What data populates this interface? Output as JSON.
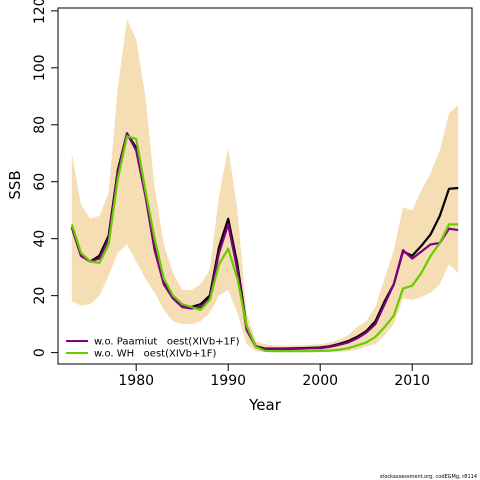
{
  "chart_data": {
    "type": "line",
    "xlabel": "Year",
    "ylabel": "SSB",
    "xlim": [
      1971.5,
      2016.5
    ],
    "ylim": [
      -4,
      121
    ],
    "x_ticks": [
      {
        "value": 1980,
        "label": "1980"
      },
      {
        "value": 1990,
        "label": "1990"
      },
      {
        "value": 2000,
        "label": "2000"
      },
      {
        "value": 2010,
        "label": "2010"
      }
    ],
    "y_ticks": [
      {
        "value": 0,
        "label": "0"
      },
      {
        "value": 20,
        "label": "20"
      },
      {
        "value": 40,
        "label": "40"
      },
      {
        "value": 60,
        "label": "60"
      },
      {
        "value": 80,
        "label": "80"
      },
      {
        "value": 100,
        "label": "100"
      },
      {
        "value": 120,
        "label": "120"
      }
    ],
    "legend_position": "bottom-left",
    "x": [
      1973,
      1974,
      1975,
      1976,
      1977,
      1978,
      1979,
      1980,
      1981,
      1982,
      1983,
      1984,
      1985,
      1986,
      1987,
      1988,
      1989,
      1990,
      1991,
      1992,
      1993,
      1994,
      1995,
      1996,
      1997,
      1998,
      1999,
      2000,
      2001,
      2002,
      2003,
      2004,
      2005,
      2006,
      2007,
      2008,
      2009,
      2010,
      2011,
      2012,
      2013,
      2014,
      2015
    ],
    "band": {
      "color": "#f5deb3",
      "upper": [
        70,
        52,
        47,
        48,
        56,
        93,
        117,
        110,
        90,
        58,
        38,
        28,
        22,
        22,
        24,
        29,
        55,
        72,
        50,
        14,
        4,
        3,
        2.5,
        2.5,
        2.5,
        2.7,
        2.8,
        3,
        3.5,
        4.5,
        6,
        9,
        11,
        16,
        26,
        36,
        51,
        50,
        57,
        63,
        71,
        84,
        87
      ],
      "lower": [
        18,
        16.5,
        17,
        20,
        27,
        35,
        38,
        32,
        26,
        21,
        15,
        11,
        10,
        10,
        11,
        14,
        20,
        22,
        14,
        3,
        0.5,
        0.2,
        0.2,
        0.2,
        0.2,
        0.2,
        0.2,
        0.3,
        0.3,
        0.3,
        0.5,
        1,
        2,
        3,
        6,
        10,
        19,
        18.5,
        19.5,
        21,
        24,
        31,
        28
      ]
    },
    "series": [
      {
        "color": "#000000",
        "values": [
          44,
          34,
          32,
          34,
          41,
          64,
          77,
          72,
          56,
          38,
          25,
          19.5,
          16.5,
          16,
          17,
          20,
          37,
          47,
          31,
          9,
          2.2,
          1.4,
          1.4,
          1.4,
          1.5,
          1.6,
          1.7,
          1.8,
          2.2,
          3,
          4,
          5.5,
          7.5,
          11,
          18,
          24,
          35.5,
          34,
          37.5,
          41.5,
          48,
          57.5,
          57.8
        ]
      },
      {
        "name": "w.o. Paamiut   oest(XIVb+1F)",
        "color": "#800080",
        "values": [
          44,
          34,
          32,
          33,
          40,
          63,
          77,
          71,
          55,
          36,
          24,
          19,
          16,
          15.5,
          16,
          19,
          35,
          45,
          29,
          8,
          2,
          1.2,
          1.2,
          1.2,
          1.3,
          1.4,
          1.5,
          1.6,
          2,
          2.7,
          3.5,
          5,
          7,
          10,
          17,
          24,
          36,
          33,
          35.5,
          38,
          38.5,
          43.5,
          43
        ]
      },
      {
        "name": "w.o. WH   oest(XIVb+1F)",
        "color": "#66cc00",
        "values": [
          45,
          35,
          32,
          31.5,
          38,
          61,
          76,
          75,
          57,
          40,
          26,
          20,
          17,
          16,
          15,
          18.5,
          31,
          36.5,
          26,
          9.5,
          2,
          0.6,
          0.5,
          0.5,
          0.5,
          0.5,
          0.5,
          0.6,
          0.7,
          1,
          1.5,
          2.5,
          3.5,
          5.5,
          9,
          13,
          22.5,
          23.5,
          28,
          34,
          38.5,
          45,
          45
        ]
      }
    ]
  },
  "footer": {
    "text": "stockassessment.org, codEGMg, r8114"
  }
}
